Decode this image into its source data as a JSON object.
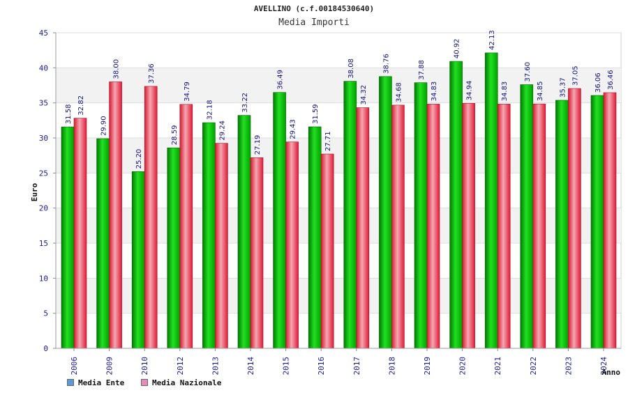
{
  "chart_data": {
    "type": "bar",
    "title": "AVELLINO (c.f.00184530640)",
    "subtitle": "Media Importi",
    "xlabel": "Anno",
    "ylabel": "Euro",
    "ylim": [
      0,
      45
    ],
    "yticks": [
      0,
      5,
      10,
      15,
      20,
      25,
      30,
      35,
      40,
      45
    ],
    "categories": [
      "2006",
      "2009",
      "2010",
      "2012",
      "2013",
      "2014",
      "2015",
      "2016",
      "2017",
      "2018",
      "2019",
      "2020",
      "2021",
      "2022",
      "2023",
      "2024"
    ],
    "series": [
      {
        "name": "Media Ente",
        "color": "#00b400",
        "values": [
          31.58,
          29.9,
          25.2,
          28.59,
          32.18,
          33.22,
          36.49,
          31.59,
          38.08,
          38.76,
          37.88,
          40.92,
          42.13,
          37.6,
          35.37,
          36.06
        ],
        "labels": [
          "31.58",
          "29.90",
          "25.20",
          "28.59",
          "32.18",
          "33.22",
          "36.49",
          "31.59",
          "38.08",
          "38.76",
          "37.88",
          "40.92",
          "42.13",
          "37.60",
          "35.37",
          "36.06"
        ]
      },
      {
        "name": "Media Nazionale",
        "color": "#e8283c",
        "values": [
          32.82,
          38.0,
          37.36,
          34.79,
          29.24,
          27.19,
          29.43,
          27.71,
          34.32,
          34.68,
          34.83,
          34.94,
          34.83,
          34.85,
          37.05,
          36.46
        ],
        "labels": [
          "32.82",
          "38.00",
          "37.36",
          "34.79",
          "29.24",
          "27.19",
          "29.43",
          "27.71",
          "34.32",
          "34.68",
          "34.83",
          "34.94",
          "34.83",
          "34.85",
          "37.05",
          "36.46"
        ]
      }
    ],
    "legend": [
      {
        "label": "Media Ente",
        "color": "#5b9bd5"
      },
      {
        "label": "Media Nazionale",
        "color": "#e88ab4"
      }
    ],
    "grid": true,
    "legend_position": "bottom-left"
  }
}
